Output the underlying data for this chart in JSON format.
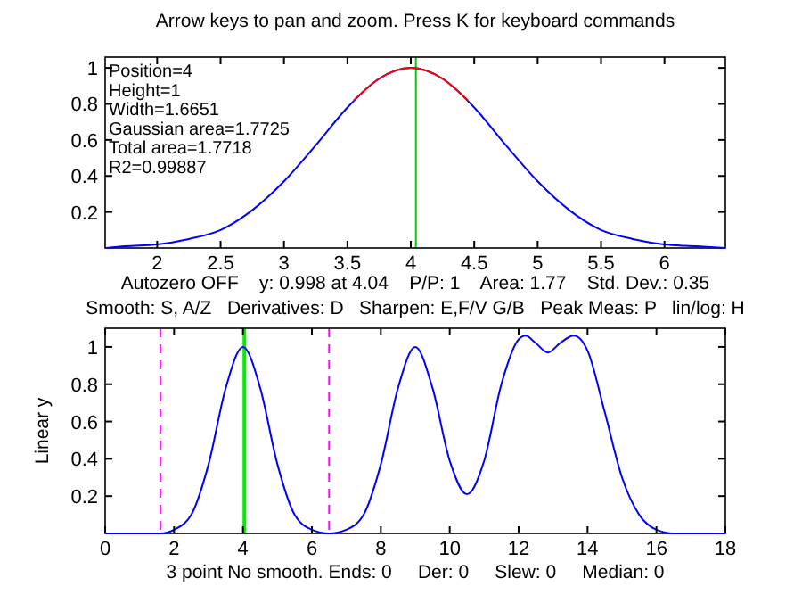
{
  "chart_data": [
    {
      "type": "line",
      "title": "Arrow keys to pan and zoom. Press K for keyboard commands",
      "xlabel": "Autozero OFF    y: 0.998 at 4.04    P/P: 1    Area: 1.77    Std. Dev.: 0.35",
      "xlim": [
        1.59,
        6.48
      ],
      "ylim": [
        0,
        1.06
      ],
      "xticks": [
        2,
        2.5,
        3,
        3.5,
        4,
        4.5,
        5,
        5.5,
        6
      ],
      "yticks": [
        0.2,
        0.4,
        0.6,
        0.8,
        1
      ],
      "grid": false,
      "annotations": [
        "Position=4",
        "Height=1",
        "Width=1.6651",
        "Gaussian area=1.7725",
        "Total area=1.7718",
        "R2=0.99887"
      ],
      "series": [
        {
          "color": "#0000ff",
          "x": [
            1.6,
            1.75,
            2,
            2.25,
            2.5,
            2.75,
            3,
            3.25,
            3.5,
            3.75,
            4,
            4.25,
            4.5,
            4.75,
            5,
            5.25,
            5.5,
            5.75,
            6,
            6.25,
            6.48
          ],
          "values": [
            0,
            0.01,
            0.02,
            0.05,
            0.1,
            0.21,
            0.37,
            0.57,
            0.78,
            0.94,
            1,
            0.94,
            0.78,
            0.57,
            0.37,
            0.21,
            0.1,
            0.05,
            0.02,
            0.01,
            0
          ]
        },
        {
          "color": "#ff0000",
          "x": [
            3.55,
            3.75,
            4,
            4.25,
            4.45
          ],
          "values": [
            0.82,
            0.94,
            1,
            0.94,
            0.82
          ]
        }
      ],
      "ref_lines": [
        {
          "axis": "x",
          "value": 4.04,
          "color": "#00cc00",
          "line_style": "solid"
        }
      ]
    },
    {
      "type": "line",
      "title": "Smooth: S, A/Z   Derivatives: D   Sharpen: E,F/V G/B   Peak Meas: P   lin/log: H",
      "xlabel": "3 point No smooth. Ends: 0     Der: 0     Slew: 0     Median: 0",
      "ylabel": "Linear y",
      "xlim": [
        0,
        18
      ],
      "ylim": [
        0,
        1.1
      ],
      "xticks": [
        0,
        2,
        4,
        6,
        8,
        10,
        12,
        14,
        16,
        18
      ],
      "yticks": [
        0.2,
        0.4,
        0.6,
        0.8,
        1
      ],
      "grid": false,
      "series": [
        {
          "color": "#0000ff",
          "x": [
            0,
            1,
            1.6,
            2,
            2.5,
            3,
            3.5,
            4,
            4.5,
            5,
            5.5,
            6,
            6.5,
            7,
            7.5,
            8,
            8.5,
            9,
            9.5,
            10,
            10.5,
            11,
            11.5,
            12,
            12.2,
            12.5,
            12.85,
            13.2,
            13.6,
            14,
            14.5,
            15,
            15.5,
            16,
            16.5,
            17,
            18
          ],
          "values": [
            0,
            0,
            0,
            0.02,
            0.1,
            0.37,
            0.78,
            1,
            0.78,
            0.37,
            0.1,
            0.02,
            0,
            0.02,
            0.1,
            0.37,
            0.78,
            1,
            0.78,
            0.39,
            0.21,
            0.39,
            0.8,
            1.04,
            1.06,
            1.02,
            0.97,
            1.02,
            1.06,
            0.98,
            0.65,
            0.3,
            0.1,
            0.02,
            0,
            0,
            0
          ]
        }
      ],
      "ref_lines": [
        {
          "axis": "x",
          "value": 4.04,
          "color": "#00ee00",
          "line_style": "solid"
        },
        {
          "axis": "x",
          "value": 1.6,
          "color": "#ff00ff",
          "line_style": "dashed"
        },
        {
          "axis": "x",
          "value": 6.5,
          "color": "#ff00ff",
          "line_style": "dashed"
        }
      ]
    }
  ]
}
